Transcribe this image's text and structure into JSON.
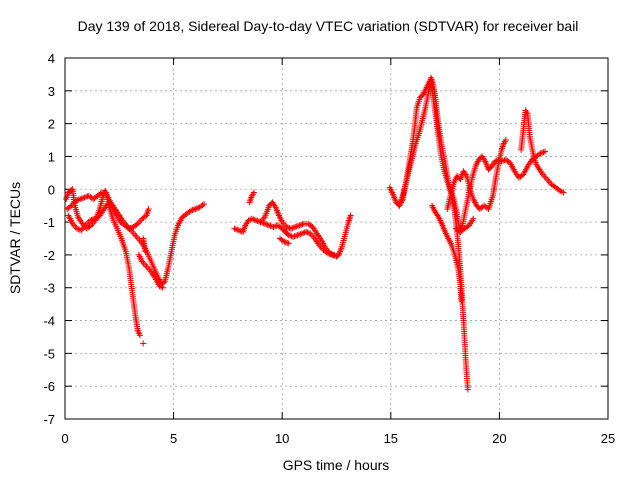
{
  "chart_data": {
    "type": "scatter",
    "title": "Day 139 of 2018, Sidereal Day-to-day VTEC variation (SDTVAR) for receiver bail",
    "xlabel": "GPS time / hours",
    "ylabel": "SDTVAR / TECUs",
    "xlim": [
      0,
      25
    ],
    "ylim": [
      -7,
      4
    ],
    "grid": true,
    "marker": "+",
    "color": "#ff0000",
    "x_ticks": [
      0,
      5,
      10,
      15,
      20,
      25
    ],
    "x_tick_labels": [
      "0",
      "5",
      "10",
      "15",
      "20",
      "25"
    ],
    "y_ticks": [
      -7,
      -6,
      -5,
      -4,
      -3,
      -2,
      -1,
      0,
      1,
      2,
      3,
      4
    ],
    "y_tick_labels": [
      "-7",
      "-6",
      "-5",
      "-4",
      "-3",
      "-2",
      "-1",
      "0",
      "1",
      "2",
      "3",
      "4"
    ],
    "series": [
      {
        "name": "receiver bail",
        "segments": [
          [
            [
              0.05,
              -0.3
            ],
            [
              0.15,
              -0.1
            ],
            [
              0.25,
              -0.05
            ],
            [
              0.35,
              0.0
            ],
            [
              0.45,
              -0.5
            ],
            [
              0.6,
              -0.85
            ],
            [
              0.8,
              -1.05
            ],
            [
              1.0,
              -1.2
            ],
            [
              1.2,
              -1.1
            ],
            [
              1.4,
              -0.95
            ],
            [
              1.6,
              -0.6
            ],
            [
              1.75,
              -0.2
            ],
            [
              1.85,
              -0.05
            ],
            [
              1.95,
              -0.2
            ],
            [
              2.05,
              -0.55
            ],
            [
              2.2,
              -0.9
            ],
            [
              2.4,
              -1.2
            ],
            [
              2.6,
              -1.5
            ],
            [
              2.8,
              -1.9
            ],
            [
              2.95,
              -2.4
            ],
            [
              3.05,
              -2.9
            ],
            [
              3.15,
              -3.4
            ],
            [
              3.25,
              -3.9
            ],
            [
              3.35,
              -4.3
            ],
            [
              3.45,
              -4.45
            ]
          ],
          [
            [
              0.1,
              -0.6
            ],
            [
              0.3,
              -0.5
            ],
            [
              0.5,
              -0.35
            ],
            [
              0.7,
              -0.3
            ],
            [
              0.9,
              -0.25
            ],
            [
              1.1,
              -0.2
            ],
            [
              1.3,
              -0.3
            ],
            [
              1.5,
              -0.2
            ],
            [
              1.7,
              -0.1
            ],
            [
              1.9,
              -0.15
            ],
            [
              2.1,
              -0.4
            ],
            [
              2.3,
              -0.6
            ],
            [
              2.5,
              -0.8
            ],
            [
              2.7,
              -1.0
            ],
            [
              2.9,
              -1.15
            ],
            [
              3.1,
              -1.3
            ],
            [
              3.3,
              -1.45
            ],
            [
              3.5,
              -1.6
            ],
            [
              3.7,
              -1.8
            ],
            [
              3.9,
              -2.1
            ],
            [
              4.1,
              -2.4
            ],
            [
              4.3,
              -2.7
            ],
            [
              4.45,
              -2.9
            ],
            [
              4.6,
              -2.8
            ],
            [
              4.75,
              -2.4
            ],
            [
              4.9,
              -1.9
            ],
            [
              5.05,
              -1.4
            ],
            [
              5.2,
              -1.1
            ],
            [
              5.4,
              -0.85
            ],
            [
              5.6,
              -0.75
            ],
            [
              5.8,
              -0.65
            ],
            [
              6.0,
              -0.6
            ],
            [
              6.2,
              -0.55
            ],
            [
              6.4,
              -0.45
            ]
          ],
          [
            [
              0.15,
              -0.8
            ],
            [
              0.35,
              -1.05
            ],
            [
              0.55,
              -1.2
            ],
            [
              0.75,
              -1.25
            ],
            [
              0.95,
              -1.1
            ],
            [
              1.15,
              -0.95
            ],
            [
              1.35,
              -0.9
            ],
            [
              1.55,
              -0.85
            ],
            [
              1.75,
              -0.65
            ],
            [
              1.95,
              -0.45
            ],
            [
              2.15,
              -0.5
            ],
            [
              2.35,
              -0.75
            ],
            [
              2.55,
              -1.0
            ],
            [
              2.75,
              -1.1
            ],
            [
              2.95,
              -1.2
            ],
            [
              3.15,
              -1.15
            ],
            [
              3.35,
              -1.05
            ],
            [
              3.55,
              -0.9
            ],
            [
              3.75,
              -0.8
            ],
            [
              3.85,
              -0.6
            ]
          ],
          [
            [
              3.4,
              -2.0
            ],
            [
              3.55,
              -2.2
            ],
            [
              3.75,
              -2.35
            ],
            [
              3.95,
              -2.5
            ],
            [
              4.15,
              -2.7
            ],
            [
              4.35,
              -2.95
            ],
            [
              4.5,
              -3.0
            ]
          ],
          [
            [
              3.6,
              -1.5
            ],
            [
              3.65,
              -1.7
            ],
            [
              3.7,
              -1.9
            ]
          ],
          [
            [
              3.6,
              -4.7
            ]
          ],
          [
            [
              7.8,
              -1.2
            ],
            [
              8.0,
              -1.25
            ],
            [
              8.2,
              -1.3
            ],
            [
              8.3,
              -1.1
            ],
            [
              8.45,
              -0.95
            ],
            [
              8.6,
              -0.9
            ],
            [
              8.8,
              -0.95
            ],
            [
              9.0,
              -1.0
            ],
            [
              9.2,
              -1.05
            ],
            [
              9.4,
              -1.1
            ],
            [
              9.6,
              -1.15
            ],
            [
              9.8,
              -1.1
            ],
            [
              10.0,
              -1.2
            ],
            [
              10.15,
              -1.3
            ],
            [
              10.3,
              -1.4
            ],
            [
              10.5,
              -1.45
            ],
            [
              10.7,
              -1.4
            ],
            [
              10.9,
              -1.35
            ],
            [
              11.1,
              -1.3
            ],
            [
              11.3,
              -1.35
            ],
            [
              11.5,
              -1.5
            ],
            [
              11.7,
              -1.7
            ],
            [
              11.9,
              -1.85
            ],
            [
              12.1,
              -1.95
            ],
            [
              12.3,
              -2.0
            ],
            [
              12.5,
              -2.05
            ],
            [
              12.6,
              -2.0
            ],
            [
              12.75,
              -1.75
            ],
            [
              12.85,
              -1.5
            ],
            [
              12.95,
              -1.25
            ],
            [
              13.05,
              -1.0
            ],
            [
              13.15,
              -0.8
            ]
          ],
          [
            [
              9.0,
              -1.0
            ],
            [
              9.2,
              -0.85
            ],
            [
              9.4,
              -0.5
            ],
            [
              9.55,
              -0.4
            ],
            [
              9.7,
              -0.55
            ],
            [
              9.85,
              -0.8
            ],
            [
              10.0,
              -1.0
            ],
            [
              10.2,
              -1.15
            ],
            [
              10.4,
              -1.2
            ],
            [
              10.6,
              -1.15
            ],
            [
              10.8,
              -1.1
            ],
            [
              11.0,
              -1.05
            ],
            [
              11.2,
              -1.05
            ],
            [
              11.4,
              -1.15
            ],
            [
              11.6,
              -1.35
            ],
            [
              11.8,
              -1.55
            ],
            [
              12.0,
              -1.8
            ],
            [
              12.2,
              -1.95
            ],
            [
              12.4,
              -2.0
            ]
          ],
          [
            [
              8.5,
              -0.4
            ],
            [
              8.6,
              -0.2
            ],
            [
              8.7,
              -0.1
            ]
          ],
          [
            [
              9.9,
              -1.5
            ],
            [
              10.1,
              -1.6
            ],
            [
              10.3,
              -1.65
            ]
          ],
          [
            [
              14.95,
              0.05
            ],
            [
              15.1,
              -0.15
            ],
            [
              15.25,
              -0.4
            ],
            [
              15.4,
              -0.5
            ],
            [
              15.55,
              -0.3
            ],
            [
              15.7,
              0.2
            ],
            [
              15.85,
              0.8
            ],
            [
              16.0,
              1.4
            ],
            [
              16.1,
              1.9
            ],
            [
              16.2,
              2.5
            ],
            [
              16.35,
              2.8
            ],
            [
              16.5,
              2.9
            ],
            [
              16.65,
              3.1
            ],
            [
              16.8,
              3.3
            ],
            [
              16.9,
              3.1
            ],
            [
              17.0,
              2.6
            ],
            [
              17.1,
              2.1
            ],
            [
              17.2,
              1.6
            ],
            [
              17.3,
              1.1
            ],
            [
              17.45,
              0.6
            ],
            [
              17.6,
              0.25
            ],
            [
              17.75,
              0.0
            ],
            [
              17.9,
              -0.3
            ],
            [
              18.0,
              -0.6
            ],
            [
              18.1,
              -1.0
            ],
            [
              18.2,
              -1.3
            ],
            [
              18.3,
              -1.1
            ],
            [
              18.45,
              -0.6
            ],
            [
              18.6,
              -0.1
            ],
            [
              18.75,
              0.35
            ],
            [
              18.9,
              0.7
            ],
            [
              19.05,
              0.9
            ],
            [
              19.2,
              1.0
            ],
            [
              19.35,
              0.85
            ],
            [
              19.5,
              0.6
            ],
            [
              19.65,
              0.7
            ],
            [
              19.8,
              0.85
            ],
            [
              19.95,
              0.9
            ],
            [
              20.1,
              0.85
            ],
            [
              20.3,
              0.9
            ],
            [
              20.5,
              0.8
            ],
            [
              20.7,
              0.55
            ],
            [
              20.9,
              0.35
            ],
            [
              21.1,
              0.45
            ],
            [
              21.3,
              0.7
            ],
            [
              21.5,
              0.9
            ],
            [
              21.7,
              1.0
            ],
            [
              21.9,
              1.1
            ],
            [
              22.1,
              1.15
            ]
          ],
          [
            [
              15.4,
              -0.5
            ],
            [
              15.55,
              -0.2
            ],
            [
              15.7,
              0.2
            ],
            [
              15.85,
              0.6
            ],
            [
              16.0,
              1.0
            ],
            [
              16.15,
              1.4
            ],
            [
              16.3,
              1.7
            ],
            [
              16.45,
              2.1
            ],
            [
              16.6,
              2.5
            ],
            [
              16.75,
              3.0
            ],
            [
              16.85,
              3.4
            ],
            [
              16.95,
              3.2
            ],
            [
              17.05,
              2.8
            ],
            [
              17.15,
              2.2
            ],
            [
              17.25,
              1.7
            ],
            [
              17.35,
              1.3
            ],
            [
              17.5,
              0.8
            ],
            [
              17.65,
              0.2
            ],
            [
              17.8,
              -0.2
            ],
            [
              17.95,
              -0.7
            ],
            [
              18.05,
              -1.3
            ],
            [
              18.15,
              -2.0
            ],
            [
              18.25,
              -2.9
            ],
            [
              18.3,
              -3.5
            ],
            [
              18.35,
              -4.0
            ],
            [
              18.4,
              -4.6
            ],
            [
              18.45,
              -5.2
            ],
            [
              18.5,
              -5.7
            ],
            [
              18.55,
              -6.1
            ]
          ],
          [
            [
              16.9,
              -0.5
            ],
            [
              17.05,
              -0.7
            ],
            [
              17.2,
              -0.85
            ],
            [
              17.35,
              -1.05
            ],
            [
              17.5,
              -1.3
            ],
            [
              17.65,
              -1.5
            ],
            [
              17.8,
              -1.7
            ],
            [
              17.95,
              -2.0
            ],
            [
              18.1,
              -2.4
            ],
            [
              18.2,
              -2.9
            ],
            [
              18.25,
              -3.4
            ]
          ],
          [
            [
              17.6,
              -0.6
            ],
            [
              17.75,
              -0.2
            ],
            [
              17.9,
              0.2
            ],
            [
              18.05,
              0.4
            ],
            [
              18.2,
              0.3
            ],
            [
              18.35,
              0.55
            ],
            [
              18.5,
              0.4
            ],
            [
              18.65,
              0.0
            ],
            [
              18.8,
              -0.3
            ],
            [
              18.95,
              -0.5
            ],
            [
              19.1,
              -0.6
            ],
            [
              19.3,
              -0.5
            ],
            [
              19.5,
              -0.6
            ],
            [
              19.7,
              -0.2
            ],
            [
              19.85,
              0.4
            ],
            [
              20.0,
              0.9
            ],
            [
              20.1,
              1.2
            ],
            [
              20.2,
              1.4
            ],
            [
              20.3,
              1.5
            ]
          ],
          [
            [
              18.0,
              -1.2
            ],
            [
              18.2,
              -1.3
            ],
            [
              18.4,
              -1.2
            ],
            [
              18.6,
              -1.1
            ],
            [
              18.8,
              -0.9
            ]
          ],
          [
            [
              21.0,
              1.2
            ],
            [
              21.1,
              1.8
            ],
            [
              21.2,
              2.4
            ],
            [
              21.3,
              2.3
            ],
            [
              21.4,
              1.6
            ],
            [
              21.55,
              1.1
            ],
            [
              21.7,
              0.75
            ],
            [
              21.85,
              0.6
            ],
            [
              22.0,
              0.45
            ],
            [
              22.2,
              0.3
            ],
            [
              22.4,
              0.15
            ],
            [
              22.6,
              0.05
            ],
            [
              22.8,
              -0.05
            ],
            [
              22.95,
              -0.1
            ]
          ]
        ]
      }
    ]
  }
}
